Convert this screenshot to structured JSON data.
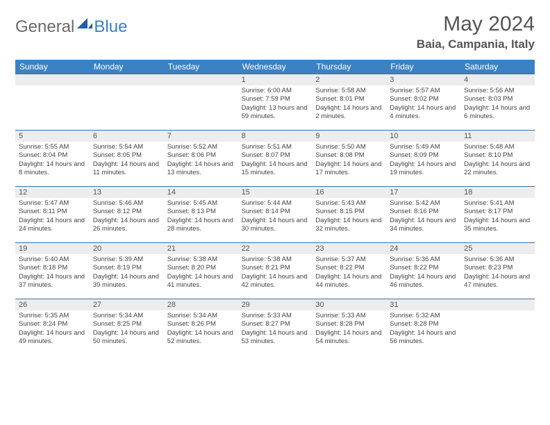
{
  "logo": {
    "text1": "General",
    "text2": "Blue"
  },
  "title": "May 2024",
  "location": "Baia, Campania, Italy",
  "colors": {
    "header_bg": "#3b82c4",
    "rule": "#3b6fa0",
    "daynum_bg": "#ededed",
    "text": "#444444",
    "logo_gray": "#6a6a6a",
    "logo_blue": "#3b7fc4"
  },
  "weekdays": [
    "Sunday",
    "Monday",
    "Tuesday",
    "Wednesday",
    "Thursday",
    "Friday",
    "Saturday"
  ],
  "weeks": [
    [
      null,
      null,
      null,
      {
        "n": "1",
        "sr": "6:00 AM",
        "ss": "7:59 PM",
        "dl": "13 hours and 59 minutes."
      },
      {
        "n": "2",
        "sr": "5:58 AM",
        "ss": "8:01 PM",
        "dl": "14 hours and 2 minutes."
      },
      {
        "n": "3",
        "sr": "5:57 AM",
        "ss": "8:02 PM",
        "dl": "14 hours and 4 minutes."
      },
      {
        "n": "4",
        "sr": "5:56 AM",
        "ss": "8:03 PM",
        "dl": "14 hours and 6 minutes."
      }
    ],
    [
      {
        "n": "5",
        "sr": "5:55 AM",
        "ss": "8:04 PM",
        "dl": "14 hours and 8 minutes."
      },
      {
        "n": "6",
        "sr": "5:54 AM",
        "ss": "8:05 PM",
        "dl": "14 hours and 11 minutes."
      },
      {
        "n": "7",
        "sr": "5:52 AM",
        "ss": "8:06 PM",
        "dl": "14 hours and 13 minutes."
      },
      {
        "n": "8",
        "sr": "5:51 AM",
        "ss": "8:07 PM",
        "dl": "14 hours and 15 minutes."
      },
      {
        "n": "9",
        "sr": "5:50 AM",
        "ss": "8:08 PM",
        "dl": "14 hours and 17 minutes."
      },
      {
        "n": "10",
        "sr": "5:49 AM",
        "ss": "8:09 PM",
        "dl": "14 hours and 19 minutes."
      },
      {
        "n": "11",
        "sr": "5:48 AM",
        "ss": "8:10 PM",
        "dl": "14 hours and 22 minutes."
      }
    ],
    [
      {
        "n": "12",
        "sr": "5:47 AM",
        "ss": "8:11 PM",
        "dl": "14 hours and 24 minutes."
      },
      {
        "n": "13",
        "sr": "5:46 AM",
        "ss": "8:12 PM",
        "dl": "14 hours and 26 minutes."
      },
      {
        "n": "14",
        "sr": "5:45 AM",
        "ss": "8:13 PM",
        "dl": "14 hours and 28 minutes."
      },
      {
        "n": "15",
        "sr": "5:44 AM",
        "ss": "8:14 PM",
        "dl": "14 hours and 30 minutes."
      },
      {
        "n": "16",
        "sr": "5:43 AM",
        "ss": "8:15 PM",
        "dl": "14 hours and 32 minutes."
      },
      {
        "n": "17",
        "sr": "5:42 AM",
        "ss": "8:16 PM",
        "dl": "14 hours and 34 minutes."
      },
      {
        "n": "18",
        "sr": "5:41 AM",
        "ss": "8:17 PM",
        "dl": "14 hours and 35 minutes."
      }
    ],
    [
      {
        "n": "19",
        "sr": "5:40 AM",
        "ss": "8:18 PM",
        "dl": "14 hours and 37 minutes."
      },
      {
        "n": "20",
        "sr": "5:39 AM",
        "ss": "8:19 PM",
        "dl": "14 hours and 39 minutes."
      },
      {
        "n": "21",
        "sr": "5:38 AM",
        "ss": "8:20 PM",
        "dl": "14 hours and 41 minutes."
      },
      {
        "n": "22",
        "sr": "5:38 AM",
        "ss": "8:21 PM",
        "dl": "14 hours and 42 minutes."
      },
      {
        "n": "23",
        "sr": "5:37 AM",
        "ss": "8:22 PM",
        "dl": "14 hours and 44 minutes."
      },
      {
        "n": "24",
        "sr": "5:36 AM",
        "ss": "8:22 PM",
        "dl": "14 hours and 46 minutes."
      },
      {
        "n": "25",
        "sr": "5:36 AM",
        "ss": "8:23 PM",
        "dl": "14 hours and 47 minutes."
      }
    ],
    [
      {
        "n": "26",
        "sr": "5:35 AM",
        "ss": "8:24 PM",
        "dl": "14 hours and 49 minutes."
      },
      {
        "n": "27",
        "sr": "5:34 AM",
        "ss": "8:25 PM",
        "dl": "14 hours and 50 minutes."
      },
      {
        "n": "28",
        "sr": "5:34 AM",
        "ss": "8:26 PM",
        "dl": "14 hours and 52 minutes."
      },
      {
        "n": "29",
        "sr": "5:33 AM",
        "ss": "8:27 PM",
        "dl": "14 hours and 53 minutes."
      },
      {
        "n": "30",
        "sr": "5:33 AM",
        "ss": "8:28 PM",
        "dl": "14 hours and 54 minutes."
      },
      {
        "n": "31",
        "sr": "5:32 AM",
        "ss": "8:28 PM",
        "dl": "14 hours and 56 minutes."
      },
      null
    ]
  ],
  "labels": {
    "sunrise": "Sunrise:",
    "sunset": "Sunset:",
    "daylight": "Daylight:"
  }
}
